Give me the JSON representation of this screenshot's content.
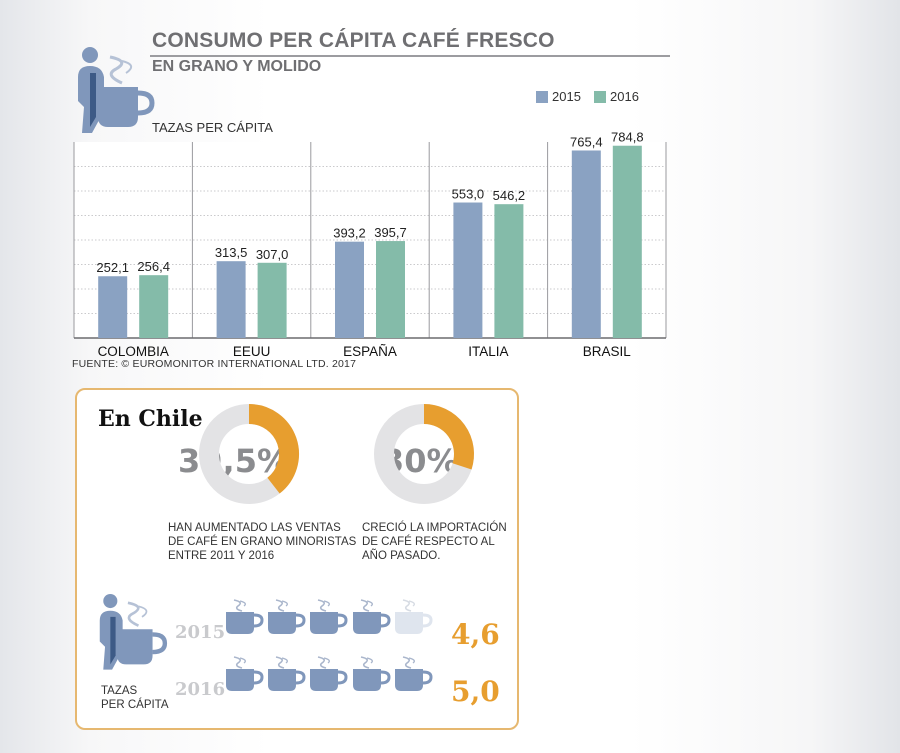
{
  "header": {
    "title": "CONSUMO PER CÁPITA CAFÉ FRESCO",
    "subtitle": "EN GRANO Y MOLIDO"
  },
  "colors": {
    "series_2015": "#8aa2c2",
    "series_2016": "#84bba9",
    "accent": "#e79e2f",
    "donut_gray": "#e3e3e5",
    "cup": "#8097bb"
  },
  "icons": [
    "person-with-cup-icon",
    "coffee-cup-icon"
  ],
  "chart_data": {
    "type": "bar",
    "title": "CONSUMO PER CÁPITA CAFÉ FRESCO",
    "subtitle": "EN GRANO Y MOLIDO",
    "ylabel": "TAZAS PER CÁPITA",
    "categories": [
      "COLOMBIA",
      "EEUU",
      "ESPAÑA",
      "ITALIA",
      "BRASIL"
    ],
    "series": [
      {
        "name": "2015",
        "values": [
          252.1,
          313.5,
          393.2,
          553.0,
          765.4
        ],
        "labels": [
          "252,1",
          "313,5",
          "393,2",
          "553,0",
          "765,4"
        ]
      },
      {
        "name": "2016",
        "values": [
          256.4,
          307.0,
          395.7,
          546.2,
          784.8
        ],
        "labels": [
          "256,4",
          "307,0",
          "395,7",
          "546,2",
          "784,8"
        ]
      }
    ],
    "ylim": [
      0,
      800
    ],
    "grid": true,
    "legend": "top-right",
    "source": "FUENTE: © EUROMONITOR INTERNATIONAL LTD. 2017"
  },
  "chile": {
    "title": "En Chile",
    "donuts": [
      {
        "value": 39.5,
        "label": "39,5%",
        "caption": "HAN AUMENTADO LAS VENTAS\nDE CAFÉ EN GRANO MINORISTAS\nENTRE 2011 Y 2016"
      },
      {
        "value": 30,
        "label": "30%",
        "caption": "CRECIÓ LA IMPORTACIÓN\nDE CAFÉ RESPECTO AL\nAÑO PASADO."
      }
    ],
    "cups": [
      {
        "year": "2015",
        "value": 4.6,
        "label": "4,6"
      },
      {
        "year": "2016",
        "value": 5.0,
        "label": "5,0"
      }
    ],
    "cups_caption": "TAZAS\nPER CÁPITA"
  }
}
